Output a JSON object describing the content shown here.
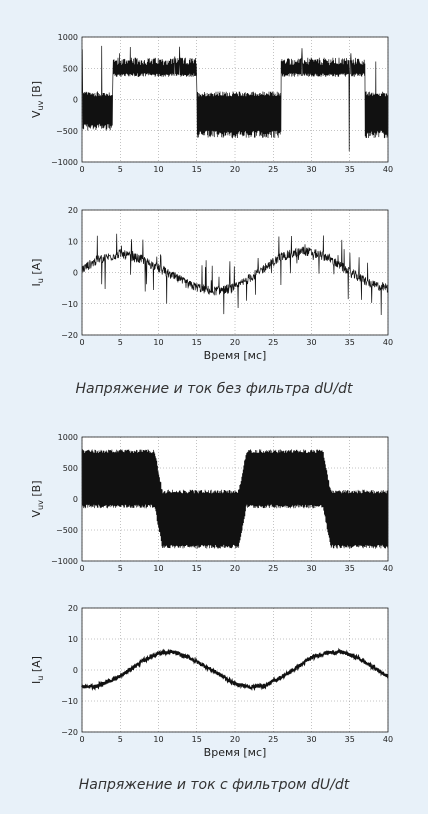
{
  "figure": {
    "background": "#e8f1f9",
    "captions": [
      "Напряжение и ток без фильтра dU/dt",
      "Напряжение и ток с фильтром dU/dt"
    ]
  },
  "chart_data": [
    {
      "type": "line",
      "group": "без фильтра dU/dt",
      "ylabel_main": "V",
      "ylabel_sub": "uv",
      "ylabel_unit": "[B]",
      "xlabel": "",
      "xlim": [
        0,
        40
      ],
      "ylim": [
        -1000,
        1000
      ],
      "xticks": [
        0,
        5,
        10,
        15,
        20,
        25,
        30,
        35,
        40
      ],
      "yticks": [
        -1000,
        -500,
        0,
        500,
        1000
      ],
      "grid": "dotted",
      "line_color": "#111111",
      "series": [
        {
          "x": [
            0,
            4,
            4,
            15,
            15,
            26,
            26,
            37,
            37,
            40
          ],
          "y": [
            0,
            0,
            550,
            550,
            0,
            0,
            550,
            550,
            0,
            0
          ],
          "y_low": [
            0,
            -400,
            0,
            -500,
            0,
            -500,
            0,
            -450,
            0,
            -500
          ]
        }
      ],
      "band_amplitude": 120
    },
    {
      "type": "line",
      "group": "без фильтра dU/dt",
      "ylabel_main": "I",
      "ylabel_sub": "u",
      "ylabel_unit": "[A]",
      "xlabel": "Время [мс]",
      "xlim": [
        0,
        40
      ],
      "ylim": [
        -20,
        20
      ],
      "xticks": [
        0,
        5,
        10,
        15,
        20,
        25,
        30,
        35,
        40
      ],
      "yticks": [
        -20,
        -10,
        0,
        10,
        20
      ],
      "grid": "dotted",
      "line_color": "#111111",
      "series": [
        {
          "x": [
            0,
            2,
            5,
            8,
            11,
            14,
            17,
            20,
            23,
            26,
            29,
            32,
            35,
            38,
            40
          ],
          "y": [
            1,
            4,
            6,
            4,
            0,
            -4,
            -6,
            -5,
            0,
            5,
            7,
            5,
            0,
            -4,
            -5
          ]
        }
      ],
      "spike_amplitude": 10
    },
    {
      "type": "line",
      "group": "с фильтром dU/dt",
      "ylabel_main": "V",
      "ylabel_sub": "uv",
      "ylabel_unit": "[B]",
      "xlabel": "",
      "xlim": [
        0,
        40
      ],
      "ylim": [
        -1000,
        1000
      ],
      "xticks": [
        0,
        5,
        10,
        15,
        20,
        25,
        30,
        35,
        40
      ],
      "yticks": [
        -1000,
        -500,
        0,
        500,
        1000
      ],
      "grid": "dotted",
      "line_color": "#111111",
      "series": [
        {
          "x": [
            0,
            9.5,
            10.5,
            20.5,
            21.5,
            31.5,
            32.5,
            40
          ],
          "y_high": [
            800,
            800,
            150,
            150,
            800,
            800,
            150,
            150
          ],
          "y_low": [
            -150,
            -150,
            -800,
            -800,
            -150,
            -150,
            -800,
            -800
          ]
        }
      ]
    },
    {
      "type": "line",
      "group": "с фильтром dU/dt",
      "ylabel_main": "I",
      "ylabel_sub": "u",
      "ylabel_unit": "[A]",
      "xlabel": "Время [мс]",
      "xlim": [
        0,
        40
      ],
      "ylim": [
        -20,
        20
      ],
      "xticks": [
        0,
        5,
        10,
        15,
        20,
        25,
        30,
        35,
        40
      ],
      "yticks": [
        -20,
        -10,
        0,
        10,
        20
      ],
      "grid": "dotted",
      "line_color": "#111111",
      "series": [
        {
          "x": [
            0,
            2,
            5,
            8,
            10,
            12,
            14,
            17,
            20,
            22,
            24,
            27,
            30,
            32,
            34,
            36,
            38,
            40
          ],
          "y": [
            -5.5,
            -5.2,
            -2,
            3,
            5.5,
            5.7,
            4,
            0,
            -4.5,
            -5.5,
            -5,
            -1,
            4,
            5.6,
            5.8,
            4,
            1,
            -2
          ]
        }
      ],
      "band_amplitude": 0.6
    }
  ]
}
